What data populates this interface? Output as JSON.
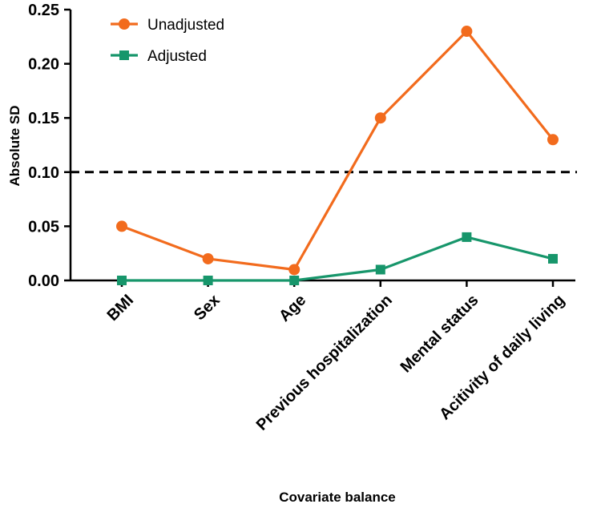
{
  "chart_data": {
    "type": "line",
    "title": "",
    "xlabel": "Covariate balance",
    "ylabel": "Absolute SD",
    "categories": [
      "BMI",
      "Sex",
      "Age",
      "Previous hospitalization",
      "Mental status",
      "Acitivity of daily living"
    ],
    "series": [
      {
        "name": "Unadjusted",
        "values": [
          0.05,
          0.02,
          0.01,
          0.15,
          0.23,
          0.13
        ],
        "color": "#f26b1d",
        "marker": "circle"
      },
      {
        "name": "Adjusted",
        "values": [
          0.0,
          0.0,
          0.0,
          0.01,
          0.04,
          0.02
        ],
        "color": "#17966b",
        "marker": "square"
      }
    ],
    "ylim": [
      0,
      0.25
    ],
    "yticks": [
      "0.00",
      "0.05",
      "0.10",
      "0.15",
      "0.20",
      "0.25"
    ],
    "reference_line": {
      "y": 0.1,
      "style": "dashed"
    },
    "legend_position": "top-left",
    "grid": false
  }
}
